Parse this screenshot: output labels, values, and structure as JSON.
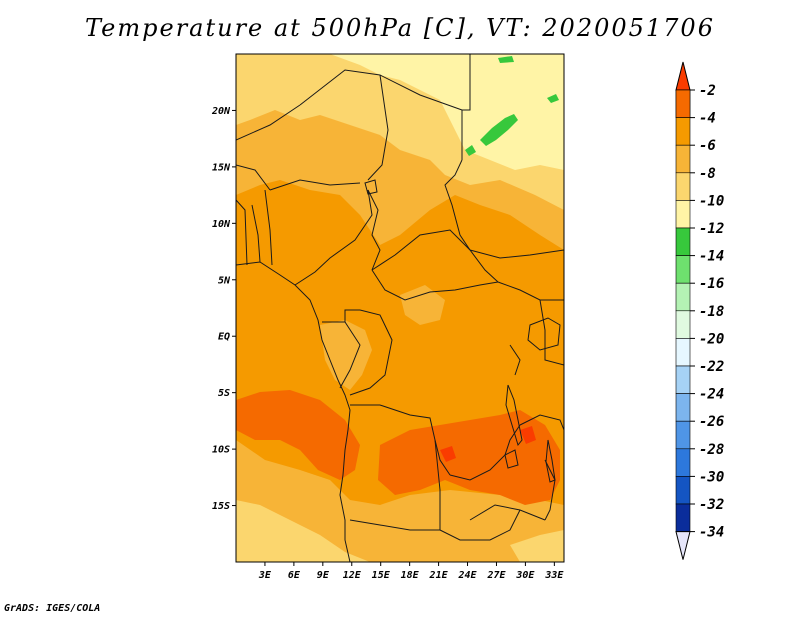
{
  "title": "Temperature at 500hPa [C], VT: 2020051706",
  "credit": "GrADS: IGES/COLA",
  "map": {
    "lon_range": [
      0,
      34
    ],
    "lat_range": [
      -20,
      25
    ],
    "lat_ticks": [
      {
        "lat": 20,
        "label": "20N"
      },
      {
        "lat": 15,
        "label": "15N"
      },
      {
        "lat": 10,
        "label": "10N"
      },
      {
        "lat": 5,
        "label": "5N"
      },
      {
        "lat": 0,
        "label": "EQ"
      },
      {
        "lat": -5,
        "label": "5S"
      },
      {
        "lat": -10,
        "label": "10S"
      },
      {
        "lat": -15,
        "label": "15S"
      }
    ],
    "lon_ticks": [
      {
        "lon": 3,
        "label": "3E"
      },
      {
        "lon": 6,
        "label": "6E"
      },
      {
        "lon": 9,
        "label": "9E"
      },
      {
        "lon": 12,
        "label": "12E"
      },
      {
        "lon": 15,
        "label": "15E"
      },
      {
        "lon": 18,
        "label": "18E"
      },
      {
        "lon": 21,
        "label": "21E"
      },
      {
        "lon": 24,
        "label": "24E"
      },
      {
        "lon": 27,
        "label": "27E"
      },
      {
        "lon": 30,
        "label": "30E"
      },
      {
        "lon": 33,
        "label": "33E"
      }
    ]
  },
  "colorbar": {
    "levels": [
      {
        "label": "-2",
        "color": "#fa3c00"
      },
      {
        "label": "-4",
        "color": "#f56a00"
      },
      {
        "label": "-6",
        "color": "#f59a00"
      },
      {
        "label": "-8",
        "color": "#f7b437"
      },
      {
        "label": "-10",
        "color": "#fbd66e"
      },
      {
        "label": "-12",
        "color": "#fff4a6"
      },
      {
        "label": "-14",
        "color": "#37c83c"
      },
      {
        "label": "-16",
        "color": "#6ee06e"
      },
      {
        "label": "-18",
        "color": "#b4f2b4"
      },
      {
        "label": "-20",
        "color": "#e0fae0"
      },
      {
        "label": "-22",
        "color": "#e6f7ff"
      },
      {
        "label": "-24",
        "color": "#a6d2f5"
      },
      {
        "label": "-26",
        "color": "#7cb5ee"
      },
      {
        "label": "-28",
        "color": "#4f95e6"
      },
      {
        "label": "-30",
        "color": "#2d78dc"
      },
      {
        "label": "-32",
        "color": "#1455c3"
      },
      {
        "label": "-34",
        "color": "#0a2d9b"
      }
    ],
    "bottom_color": "#0a1b6e",
    "top_arrow_color": "#fa3c00",
    "bottom_arrow_color": "#e6e6fa"
  }
}
